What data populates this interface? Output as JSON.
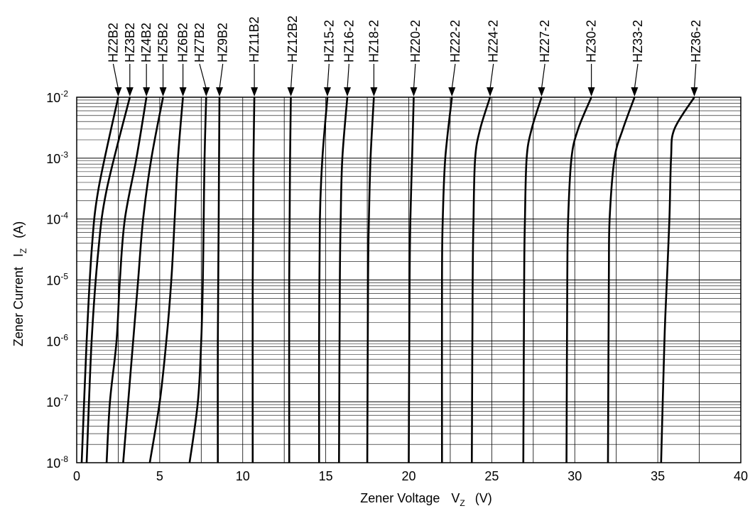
{
  "chart_data": {
    "type": "line",
    "title": "",
    "xlabel": {
      "main": "Zener Voltage",
      "symbol": "V",
      "sub": "Z",
      "unit": "(V)"
    },
    "ylabel": {
      "main": "Zener Current",
      "symbol": "I",
      "sub": "Z",
      "unit": "(A)"
    },
    "xlim": [
      0,
      40
    ],
    "ylim": [
      1e-08,
      0.01
    ],
    "yscale": "log",
    "grid": true,
    "x_ticks": [
      "0",
      "5",
      "10",
      "15",
      "20",
      "25",
      "30",
      "35",
      "40"
    ],
    "y_ticks": [
      {
        "base": "10",
        "exp": "-8"
      },
      {
        "base": "10",
        "exp": "-7"
      },
      {
        "base": "10",
        "exp": "-6"
      },
      {
        "base": "10",
        "exp": "-5"
      },
      {
        "base": "10",
        "exp": "-4"
      },
      {
        "base": "10",
        "exp": "-3"
      },
      {
        "base": "10",
        "exp": "-2"
      }
    ],
    "series": [
      {
        "name": "HZ2B2",
        "label_x": 2.2,
        "points": [
          [
            0.3,
            1e-08
          ],
          [
            0.6,
            1e-06
          ],
          [
            0.9,
            3e-05
          ],
          [
            1.3,
            0.0003
          ],
          [
            2.5,
            0.01
          ]
        ]
      },
      {
        "name": "HZ3B2",
        "label_x": 3.2,
        "points": [
          [
            0.6,
            1e-08
          ],
          [
            0.9,
            1e-06
          ],
          [
            1.3,
            3e-05
          ],
          [
            1.8,
            0.0003
          ],
          [
            3.2,
            0.01
          ]
        ]
      },
      {
        "name": "HZ4B2",
        "label_x": 4.2,
        "points": [
          [
            1.8,
            1e-08
          ],
          [
            2.0,
            1e-07
          ],
          [
            2.4,
            1e-06
          ],
          [
            2.6,
            1e-05
          ],
          [
            2.9,
            0.0001
          ],
          [
            3.6,
            0.001
          ],
          [
            4.2,
            0.01
          ]
        ]
      },
      {
        "name": "HZ5B2",
        "label_x": 5.2,
        "points": [
          [
            2.8,
            1e-08
          ],
          [
            3.1,
            1e-07
          ],
          [
            3.4,
            1e-06
          ],
          [
            3.7,
            1e-05
          ],
          [
            4.0,
            0.0001
          ],
          [
            4.5,
            0.001
          ],
          [
            5.2,
            0.01
          ]
        ]
      },
      {
        "name": "HZ6B2",
        "label_x": 6.4,
        "points": [
          [
            4.4,
            1e-08
          ],
          [
            5.0,
            1e-07
          ],
          [
            5.4,
            1e-06
          ],
          [
            5.7,
            1e-05
          ],
          [
            5.9,
            0.0001
          ],
          [
            6.1,
            0.001
          ],
          [
            6.4,
            0.01
          ]
        ]
      },
      {
        "name": "HZ7B2",
        "label_x": 7.4,
        "points": [
          [
            6.8,
            1e-08
          ],
          [
            7.3,
            1e-07
          ],
          [
            7.5,
            1e-06
          ],
          [
            7.6,
            1e-05
          ],
          [
            7.65,
            0.0001
          ],
          [
            7.7,
            0.001
          ],
          [
            7.8,
            0.01
          ]
        ]
      },
      {
        "name": "HZ9B2",
        "label_x": 8.8,
        "points": [
          [
            8.5,
            1e-08
          ],
          [
            8.5,
            1e-06
          ],
          [
            8.55,
            0.0001
          ],
          [
            8.6,
            0.01
          ]
        ]
      },
      {
        "name": "HZ11B2",
        "label_x": 10.7,
        "points": [
          [
            10.6,
            1e-08
          ],
          [
            10.6,
            1e-05
          ],
          [
            10.65,
            0.001
          ],
          [
            10.7,
            0.01
          ]
        ]
      },
      {
        "name": "HZ12B2",
        "label_x": 13.0,
        "points": [
          [
            12.8,
            1e-08
          ],
          [
            12.8,
            1e-05
          ],
          [
            12.85,
            0.001
          ],
          [
            12.9,
            0.01
          ]
        ]
      },
      {
        "name": "HZ15-2",
        "label_x": 15.2,
        "points": [
          [
            14.6,
            1e-08
          ],
          [
            14.6,
            1e-06
          ],
          [
            14.65,
            0.0001
          ],
          [
            14.8,
            0.001
          ],
          [
            15.1,
            0.01
          ]
        ]
      },
      {
        "name": "HZ16-2",
        "label_x": 16.4,
        "points": [
          [
            15.8,
            1e-08
          ],
          [
            15.85,
            1e-05
          ],
          [
            15.9,
            0.0001
          ],
          [
            16.0,
            0.001
          ],
          [
            16.3,
            0.01
          ]
        ]
      },
      {
        "name": "HZ18-2",
        "label_x": 17.9,
        "points": [
          [
            17.5,
            1e-08
          ],
          [
            17.55,
            1e-05
          ],
          [
            17.6,
            0.0001
          ],
          [
            17.7,
            0.001
          ],
          [
            17.9,
            0.01
          ]
        ]
      },
      {
        "name": "HZ20-2",
        "label_x": 20.4,
        "points": [
          [
            20.0,
            1e-08
          ],
          [
            20.05,
            1e-05
          ],
          [
            20.1,
            0.0001
          ],
          [
            20.2,
            0.001
          ],
          [
            20.3,
            0.01
          ]
        ]
      },
      {
        "name": "HZ22-2",
        "label_x": 22.8,
        "points": [
          [
            22.0,
            1e-08
          ],
          [
            22.0,
            1e-05
          ],
          [
            22.05,
            0.0001
          ],
          [
            22.2,
            0.001
          ],
          [
            22.6,
            0.01
          ]
        ]
      },
      {
        "name": "HZ24-2",
        "label_x": 25.1,
        "points": [
          [
            23.8,
            1e-08
          ],
          [
            23.85,
            1e-05
          ],
          [
            23.9,
            0.0001
          ],
          [
            24.0,
            0.001
          ],
          [
            24.3,
            0.003
          ],
          [
            24.9,
            0.01
          ]
        ]
      },
      {
        "name": "HZ27-2",
        "label_x": 28.2,
        "points": [
          [
            26.9,
            1e-08
          ],
          [
            26.95,
            1e-05
          ],
          [
            27.0,
            0.0001
          ],
          [
            27.1,
            0.001
          ],
          [
            27.4,
            0.003
          ],
          [
            28.0,
            0.01
          ]
        ]
      },
      {
        "name": "HZ30-2",
        "label_x": 31.0,
        "points": [
          [
            29.5,
            1e-08
          ],
          [
            29.55,
            1e-05
          ],
          [
            29.6,
            0.0001
          ],
          [
            29.8,
            0.001
          ],
          [
            30.2,
            0.003
          ],
          [
            31.0,
            0.01
          ]
        ]
      },
      {
        "name": "HZ33-2",
        "label_x": 33.8,
        "points": [
          [
            32.0,
            1e-08
          ],
          [
            32.05,
            1e-05
          ],
          [
            32.1,
            0.0001
          ],
          [
            32.4,
            0.001
          ],
          [
            32.9,
            0.003
          ],
          [
            33.6,
            0.01
          ]
        ]
      },
      {
        "name": "HZ36-2",
        "label_x": 37.3,
        "points": [
          [
            35.2,
            1e-08
          ],
          [
            35.4,
            1e-06
          ],
          [
            35.55,
            1e-05
          ],
          [
            35.7,
            0.0001
          ],
          [
            35.8,
            0.001
          ],
          [
            36.0,
            0.003
          ],
          [
            37.2,
            0.01
          ]
        ]
      }
    ]
  }
}
